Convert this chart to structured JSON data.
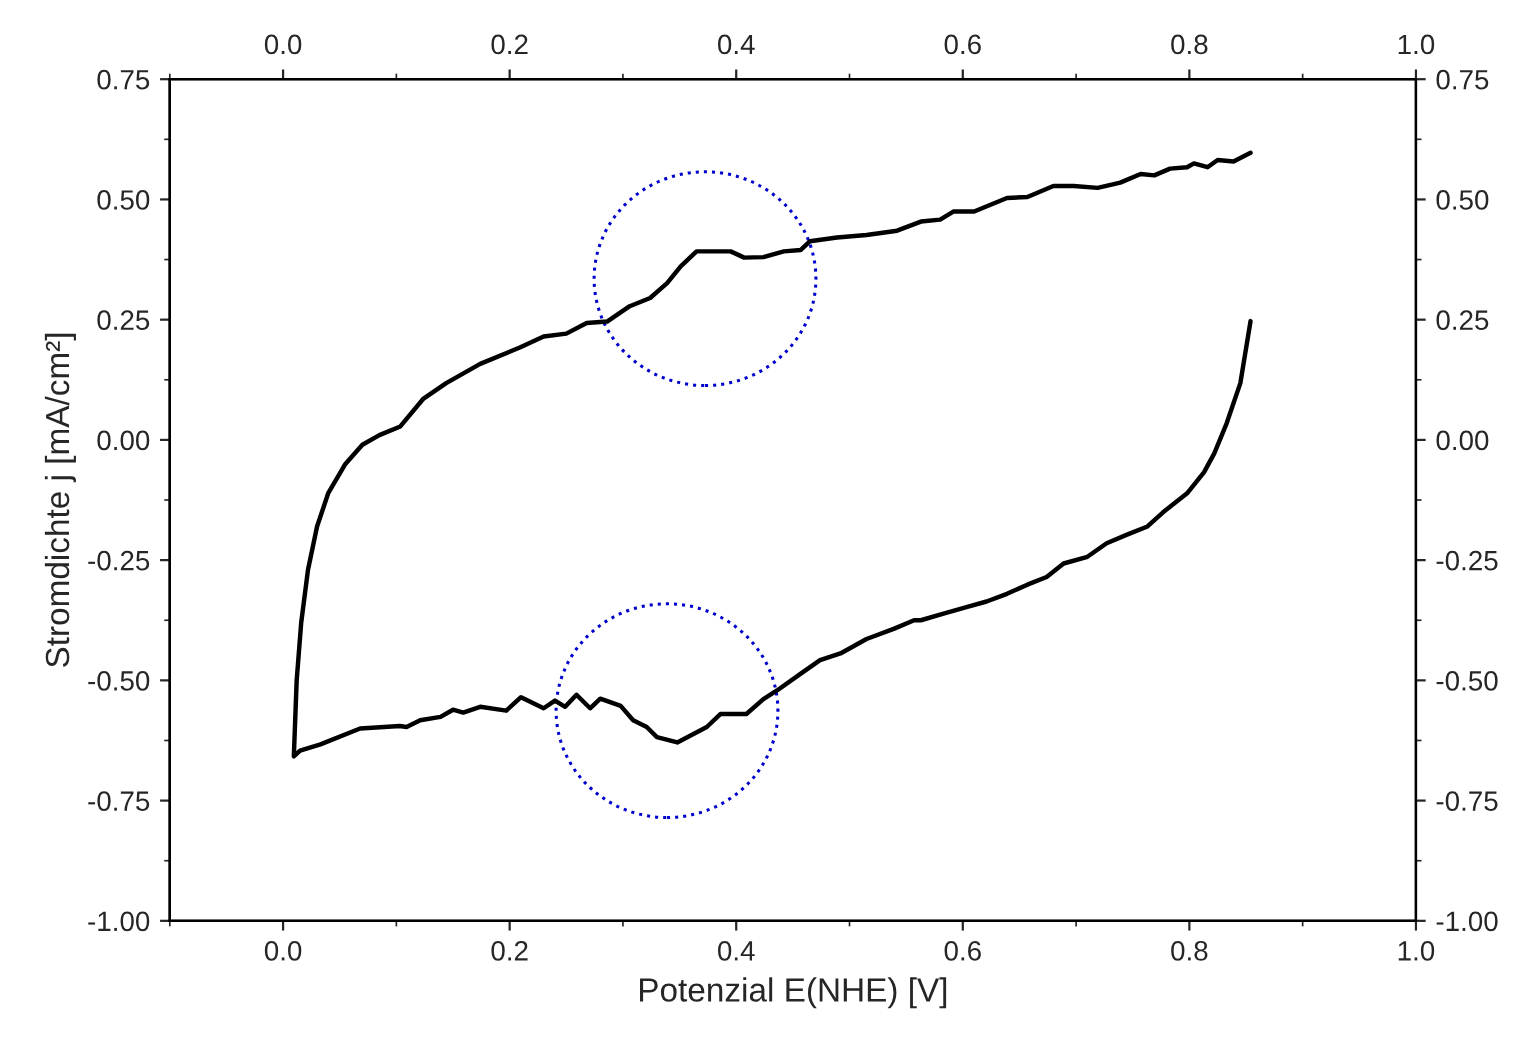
{
  "chart_data": {
    "type": "line",
    "xlabel": "Potenzial E(NHE) [V]",
    "ylabel": "Stromdichte j [mA/cm²]",
    "xlim": [
      -0.1,
      1.0
    ],
    "xticks": [
      {
        "value": 0.0,
        "label": "0.0"
      },
      0.2,
      0.4,
      0.6,
      0.8,
      {
        "value": 1.0,
        "label": "1.0"
      }
    ],
    "x2lim": [
      -0.1,
      1.0
    ],
    "x2ticks": [
      {
        "value": 0.0,
        "label": "0.0"
      },
      0.2,
      0.4,
      0.6,
      0.8,
      {
        "value": 1.0,
        "label": "1.0"
      }
    ],
    "ylim": [
      -1.0,
      0.75
    ],
    "yticks": [
      {
        "value": -1.0,
        "label": "-1.00"
      },
      {
        "value": -0.75,
        "label": "-0.75"
      },
      {
        "value": -0.5,
        "label": "-0.50"
      },
      {
        "value": -0.25,
        "label": "-0.25"
      },
      {
        "value": 0.0,
        "label": "0.00"
      },
      {
        "value": 0.25,
        "label": "0.25"
      },
      {
        "value": 0.5,
        "label": "0.50"
      },
      {
        "value": 0.75,
        "label": "0.75"
      }
    ],
    "y2lim": [
      -1.0,
      0.75
    ],
    "y2ticks": [
      {
        "value": -1.0,
        "label": "-1.00"
      },
      {
        "value": -0.75,
        "label": "-0.75"
      },
      {
        "value": -0.5,
        "label": "-0.50"
      },
      {
        "value": -0.25,
        "label": "-0.25"
      },
      {
        "value": 0.0,
        "label": "0.00"
      },
      {
        "value": 0.25,
        "label": "0.25"
      },
      {
        "value": 0.5,
        "label": "0.50"
      },
      {
        "value": 0.75,
        "label": "0.75"
      }
    ],
    "grid": false,
    "legend": false,
    "marker": "none",
    "series": [
      {
        "color": "#000000",
        "line_style": "solid",
        "x": [
          0.854,
          0.845,
          0.833,
          0.822,
          0.813,
          0.798,
          0.777,
          0.763,
          0.745,
          0.727,
          0.71,
          0.689,
          0.674,
          0.657,
          0.639,
          0.621,
          0.604,
          0.583,
          0.563,
          0.557,
          0.539,
          0.515,
          0.492,
          0.474,
          0.457,
          0.436,
          0.424,
          0.409,
          0.386,
          0.374,
          0.348,
          0.33,
          0.321,
          0.309,
          0.298,
          0.28,
          0.271,
          0.259,
          0.249,
          0.24,
          0.23,
          0.21,
          0.197,
          0.174,
          0.159,
          0.15,
          0.139,
          0.121,
          0.109,
          0.103,
          0.068,
          0.033,
          0.015,
          0.0095,
          0.012,
          0.016,
          0.022,
          0.03,
          0.04,
          0.055,
          0.07,
          0.085,
          0.1035,
          0.124,
          0.144,
          0.174,
          0.209,
          0.23,
          0.25,
          0.268,
          0.286,
          0.306,
          0.324,
          0.339,
          0.351,
          0.365,
          0.395,
          0.407,
          0.424,
          0.442,
          0.457,
          0.465,
          0.489,
          0.515,
          0.542,
          0.563,
          0.58,
          0.592,
          0.61,
          0.639,
          0.657,
          0.68,
          0.698,
          0.719,
          0.739,
          0.757,
          0.769,
          0.783,
          0.798,
          0.804,
          0.816,
          0.825,
          0.839,
          0.854
        ],
        "values": [
          0.247,
          0.118,
          0.035,
          -0.028,
          -0.067,
          -0.111,
          -0.15,
          -0.18,
          -0.197,
          -0.215,
          -0.243,
          -0.257,
          -0.285,
          -0.301,
          -0.32,
          -0.336,
          -0.347,
          -0.361,
          -0.375,
          -0.375,
          -0.393,
          -0.414,
          -0.444,
          -0.458,
          -0.486,
          -0.521,
          -0.539,
          -0.57,
          -0.57,
          -0.597,
          -0.629,
          -0.618,
          -0.597,
          -0.583,
          -0.553,
          -0.538,
          -0.558,
          -0.53,
          -0.555,
          -0.542,
          -0.558,
          -0.535,
          -0.563,
          -0.555,
          -0.567,
          -0.561,
          -0.576,
          -0.583,
          -0.597,
          -0.595,
          -0.6,
          -0.633,
          -0.646,
          -0.658,
          -0.5,
          -0.38,
          -0.27,
          -0.18,
          -0.11,
          -0.05,
          -0.01,
          0.01,
          0.028,
          0.086,
          0.118,
          0.158,
          0.192,
          0.215,
          0.221,
          0.243,
          0.246,
          0.278,
          0.295,
          0.326,
          0.361,
          0.392,
          0.392,
          0.379,
          0.38,
          0.392,
          0.395,
          0.413,
          0.421,
          0.426,
          0.435,
          0.454,
          0.458,
          0.475,
          0.475,
          0.503,
          0.505,
          0.528,
          0.528,
          0.524,
          0.535,
          0.553,
          0.55,
          0.564,
          0.567,
          0.575,
          0.567,
          0.582,
          0.579,
          0.597
        ]
      }
    ]
  }
}
